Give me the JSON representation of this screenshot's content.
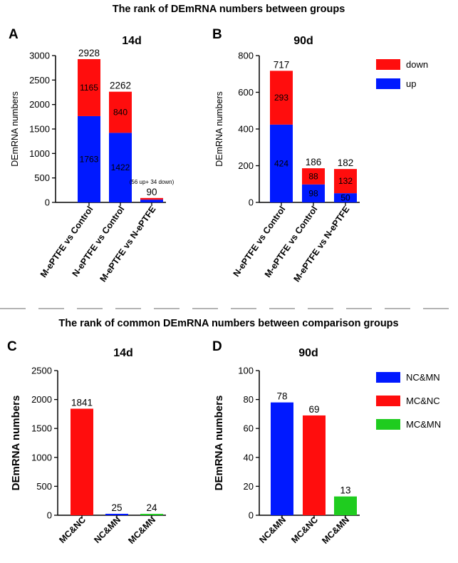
{
  "titles": {
    "top": "The rank of  DEmRNA numbers between groups",
    "bottom": "The rank of  common DEmRNA numbers between comparison groups"
  },
  "colors": {
    "up": "#0019ff",
    "down": "#ff0d0d",
    "NC&MN": "#0019ff",
    "MC&NC": "#ff0d0d",
    "MC&MN": "#1fcc1f"
  },
  "legend_top": [
    {
      "key": "down",
      "label": "down"
    },
    {
      "key": "up",
      "label": "up"
    }
  ],
  "legend_bottom": [
    {
      "key": "NC&MN",
      "label": "NC&MN"
    },
    {
      "key": "MC&NC",
      "label": "MC&NC"
    },
    {
      "key": "MC&MN",
      "label": "MC&MN"
    }
  ],
  "chart_data": [
    {
      "panel": "A",
      "type": "bar",
      "stacked": true,
      "title": "14d",
      "ylabel": "DEmRNA numbers",
      "ylim": [
        0,
        3000
      ],
      "yticks": [
        0,
        500,
        1000,
        1500,
        2000,
        2500,
        3000
      ],
      "categories": [
        "M-ePTFE vs Control",
        "N-ePTFE vs Control",
        "M-ePTFE vs N-ePTFE"
      ],
      "series": [
        {
          "name": "up",
          "values": [
            1763,
            1422,
            56
          ],
          "labels": [
            "1763",
            "1422",
            ""
          ]
        },
        {
          "name": "down",
          "values": [
            1165,
            840,
            34
          ],
          "labels": [
            "1165",
            "840",
            ""
          ]
        }
      ],
      "totals": [
        "2928",
        "2262",
        "90"
      ],
      "annotation": {
        "category": 2,
        "text": "(56 up+ 34 down)"
      }
    },
    {
      "panel": "B",
      "type": "bar",
      "stacked": true,
      "title": "90d",
      "ylabel": "DEmRNA numbers",
      "ylim": [
        0,
        800
      ],
      "yticks": [
        0,
        200,
        400,
        600,
        800
      ],
      "categories": [
        "N-ePTFE vs Control",
        "M-ePTFE vs Control",
        "M-ePTFE vs N-ePTFE"
      ],
      "series": [
        {
          "name": "up",
          "values": [
            424,
            98,
            50
          ],
          "labels": [
            "424",
            "98",
            "50"
          ]
        },
        {
          "name": "down",
          "values": [
            293,
            88,
            132
          ],
          "labels": [
            "293",
            "88",
            "132"
          ]
        }
      ],
      "totals": [
        "717",
        "186",
        "182"
      ]
    },
    {
      "panel": "C",
      "type": "bar",
      "stacked": false,
      "title": "14d",
      "ylabel": "DEmRNA numbers",
      "ylim": [
        0,
        2500
      ],
      "yticks": [
        0,
        500,
        1000,
        1500,
        2000,
        2500
      ],
      "categories": [
        "MC&NC",
        "NC&MN",
        "MC&MN"
      ],
      "colorKeys": [
        "MC&NC",
        "NC&MN",
        "MC&MN"
      ],
      "values": [
        1841,
        25,
        24
      ],
      "totals": [
        "1841",
        "25",
        "24"
      ]
    },
    {
      "panel": "D",
      "type": "bar",
      "stacked": false,
      "title": "90d",
      "ylabel": "DEmRNA numbers",
      "ylim": [
        0,
        100
      ],
      "yticks": [
        0,
        20,
        40,
        60,
        80,
        100
      ],
      "categories": [
        "NC&MN",
        "MC&NC",
        "MC&MN"
      ],
      "colorKeys": [
        "NC&MN",
        "MC&NC",
        "MC&MN"
      ],
      "values": [
        78,
        69,
        13
      ],
      "totals": [
        "78",
        "69",
        "13"
      ]
    }
  ]
}
